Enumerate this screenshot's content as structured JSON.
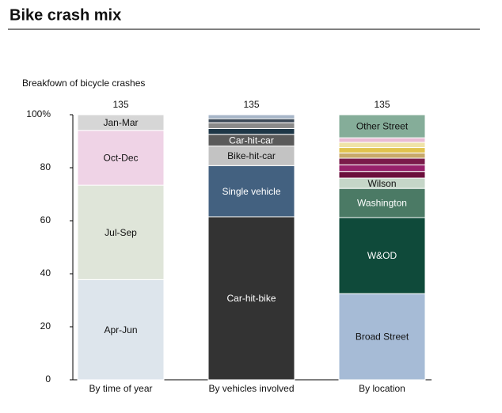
{
  "chart_data": {
    "type": "stacked-percent-bar",
    "title": "Bike crash mix",
    "subtitle": "Breakfown of bicycle crashes",
    "ylim": [
      0,
      100
    ],
    "yticks": [
      0,
      20,
      40,
      60,
      80,
      {
        "value": 100,
        "label": "100%"
      }
    ],
    "bars": [
      {
        "category": "By time of year",
        "total": 135,
        "segments": [
          {
            "label": "Apr-Jun",
            "value": 37.8,
            "color": "#dde5ec"
          },
          {
            "label": "Jul-Sep",
            "value": 35.6,
            "color": "#dfe5d9"
          },
          {
            "label": "Oct-Dec",
            "value": 20.7,
            "color": "#efd3e6"
          },
          {
            "label": "Jan-Mar",
            "value": 5.9,
            "color": "#d6d6d6"
          }
        ]
      },
      {
        "category": "By vehicles involved",
        "total": 135,
        "segments": [
          {
            "label": "Car-hit-bike",
            "value": 61.5,
            "color": "#333333"
          },
          {
            "label": "Single vehicle",
            "value": 19.3,
            "color": "#436180"
          },
          {
            "label": "Bike-hit-car",
            "value": 7.4,
            "color": "#c3c3c3"
          },
          {
            "label": "Car-hit-car",
            "value": 4.4,
            "color": "#5a5a5a"
          },
          {
            "label": null,
            "value": 2.2,
            "color": "#1d3646"
          },
          {
            "label": null,
            "value": 2.2,
            "color": "#8a8a8a"
          },
          {
            "label": null,
            "value": 1.5,
            "color": "#3f4c5a"
          },
          {
            "label": null,
            "value": 1.5,
            "color": "#a7b6c8"
          }
        ]
      },
      {
        "category": "By location",
        "total": 135,
        "segments": [
          {
            "label": "Broad Street",
            "value": 32.5,
            "color": "#a6bbd6"
          },
          {
            "label": "W&OD",
            "value": 28.7,
            "color": "#0f4a3a"
          },
          {
            "label": "Washington",
            "value": 11,
            "color": "#4b7a65"
          },
          {
            "label": "Wilson",
            "value": 3.9,
            "color": "#c5d6c8"
          },
          {
            "label": null,
            "value": 2.5,
            "color": "#6b0f3c"
          },
          {
            "label": null,
            "value": 2.5,
            "color": "#97216a"
          },
          {
            "label": null,
            "value": 2.5,
            "color": "#7a1b4a"
          },
          {
            "label": null,
            "value": 2,
            "color": "#c8a96a"
          },
          {
            "label": null,
            "value": 2,
            "color": "#e1c34e"
          },
          {
            "label": null,
            "value": 2,
            "color": "#efe3a8"
          },
          {
            "label": null,
            "value": 1.7,
            "color": "#e8bcd4"
          },
          {
            "label": "Other Street",
            "value": 8.7,
            "color": "#85ad99"
          }
        ]
      }
    ]
  }
}
